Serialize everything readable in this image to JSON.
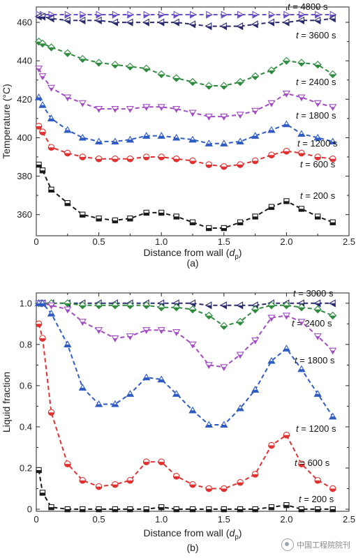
{
  "chart_data": [
    {
      "type": "line",
      "panel_label": "(a)",
      "xlabel": "Distance from wall (d_p)",
      "xlabel_main": "Distance from wall (",
      "xlabel_sym": "d",
      "xlabel_sub": "p",
      "xlabel_end": ")",
      "ylabel": "Temperature (°C)",
      "xlim": [
        0,
        2.5
      ],
      "ylim": [
        349,
        468
      ],
      "xticks": [
        0,
        0.5,
        1.0,
        1.5,
        2.0,
        2.5
      ],
      "xtick_labels": [
        "0",
        "0.5",
        "1.0",
        "1.5",
        "2.0",
        "2.5"
      ],
      "yticks": [
        360,
        380,
        400,
        420,
        440,
        460
      ],
      "ytick_labels": [
        "360",
        "380",
        "400",
        "420",
        "440",
        "460"
      ],
      "grid": false,
      "x": [
        0.02,
        0.05,
        0.12,
        0.25,
        0.37,
        0.5,
        0.63,
        0.75,
        0.88,
        1.0,
        1.12,
        1.25,
        1.38,
        1.5,
        1.63,
        1.75,
        1.88,
        2.0,
        2.12,
        2.25,
        2.37
      ],
      "series": [
        {
          "name": "t = 4800 s",
          "time": "4800",
          "color": "#6a4fc8",
          "marker": "triangle-right",
          "values": [
            464,
            464,
            464,
            464,
            464,
            464,
            464,
            464,
            464,
            464,
            464,
            464,
            464,
            464,
            464,
            464,
            464,
            464,
            464,
            464,
            464
          ]
        },
        {
          "name": "t = 3600 s",
          "time": "3600",
          "color": "#2a2a6e",
          "marker": "triangle-left",
          "values": [
            463,
            463,
            462,
            461,
            461,
            461,
            460,
            460,
            460,
            460,
            460,
            459,
            458,
            458,
            458,
            459,
            460,
            460,
            461,
            461,
            462
          ]
        },
        {
          "name": "t = 2400 s",
          "time": "2400",
          "color": "#2e8b3e",
          "marker": "diamond",
          "values": [
            450,
            449,
            447,
            444,
            441,
            439,
            438,
            437,
            436,
            433,
            431,
            429,
            427,
            427,
            429,
            432,
            435,
            440,
            439,
            438,
            433
          ]
        },
        {
          "name": "t = 1800 s",
          "time": "1800",
          "color": "#a24bc4",
          "marker": "triangle-down",
          "values": [
            436,
            432,
            426,
            421,
            418,
            415,
            415,
            415,
            416,
            416,
            415,
            413,
            411,
            411,
            412,
            414,
            418,
            423,
            421,
            418,
            416
          ]
        },
        {
          "name": "t = 1200 s",
          "time": "1200",
          "color": "#2f5bc4",
          "marker": "triangle-up",
          "values": [
            421,
            417,
            410,
            404,
            400,
            398,
            398,
            399,
            401,
            401,
            400,
            399,
            397,
            397,
            398,
            401,
            404,
            407,
            402,
            400,
            398
          ]
        },
        {
          "name": "t = 600 s",
          "time": "600",
          "color": "#e03030",
          "marker": "circle",
          "values": [
            406,
            403,
            395,
            392,
            390,
            389,
            389,
            389,
            390,
            390,
            389,
            388,
            386,
            385,
            386,
            388,
            391,
            393,
            392,
            390,
            389
          ]
        },
        {
          "name": "t = 200 s",
          "time": "200",
          "color": "#1a1a1a",
          "marker": "square",
          "values": [
            386,
            383,
            373,
            366,
            360,
            358,
            357,
            358,
            361,
            361,
            359,
            356,
            353,
            353,
            356,
            359,
            364,
            367,
            363,
            359,
            356
          ]
        }
      ]
    },
    {
      "type": "line",
      "panel_label": "(b)",
      "xlabel": "Distance from wall (d_p)",
      "xlabel_main": "Distance from wall (",
      "xlabel_sym": "d",
      "xlabel_sub": "p",
      "xlabel_end": ")",
      "ylabel": "Liquid fraction",
      "xlim": [
        0,
        2.5
      ],
      "ylim": [
        -0.01,
        1.05
      ],
      "xticks": [
        0,
        0.5,
        1.0,
        1.5,
        2.0,
        2.5
      ],
      "xtick_labels": [
        "0",
        "0.5",
        "1.0",
        "1.5",
        "2.0",
        "2.5"
      ],
      "yticks": [
        0,
        0.2,
        0.4,
        0.6,
        0.8,
        1.0
      ],
      "ytick_labels": [
        "0",
        "0.2",
        "0.4",
        "0.6",
        "0.8",
        "1.0"
      ],
      "grid": false,
      "x": [
        0.02,
        0.05,
        0.12,
        0.25,
        0.37,
        0.5,
        0.63,
        0.75,
        0.88,
        1.0,
        1.12,
        1.25,
        1.38,
        1.5,
        1.63,
        1.75,
        1.88,
        2.0,
        2.12,
        2.25,
        2.37
      ],
      "series": [
        {
          "name": "t = 3000 s",
          "time": "3000",
          "color": "#2a2a6e",
          "marker": "triangle-left",
          "values": [
            1.0,
            1.0,
            1.0,
            1.0,
            1.0,
            1.0,
            1.0,
            1.0,
            1.0,
            1.0,
            1.0,
            1.0,
            0.99,
            0.99,
            0.99,
            0.99,
            1.0,
            1.0,
            1.0,
            1.0,
            1.0
          ]
        },
        {
          "name": "t = 2400 s",
          "time": "2400",
          "color": "#2e8b3e",
          "marker": "diamond",
          "values": [
            1.0,
            1.0,
            1.0,
            1.0,
            0.99,
            0.99,
            0.99,
            0.99,
            0.99,
            0.98,
            0.98,
            0.97,
            0.94,
            0.89,
            0.91,
            0.97,
            0.99,
            0.99,
            0.98,
            0.97,
            0.94
          ]
        },
        {
          "name": "t = 1800 s",
          "time": "1800",
          "color": "#a24bc4",
          "marker": "triangle-down",
          "values": [
            1.0,
            1.0,
            0.99,
            0.97,
            0.91,
            0.87,
            0.83,
            0.84,
            0.87,
            0.87,
            0.86,
            0.8,
            0.7,
            0.69,
            0.75,
            0.82,
            0.93,
            0.94,
            0.91,
            0.84,
            0.77
          ]
        },
        {
          "name": "t = 1200 s",
          "time": "1200",
          "color": "#2f5bc4",
          "marker": "triangle-up",
          "values": [
            1.0,
            1.0,
            0.95,
            0.8,
            0.59,
            0.51,
            0.51,
            0.56,
            0.64,
            0.63,
            0.56,
            0.48,
            0.41,
            0.41,
            0.49,
            0.58,
            0.72,
            0.78,
            0.68,
            0.56,
            0.45
          ]
        },
        {
          "name": "t = 600 s",
          "time": "600",
          "color": "#e03030",
          "marker": "circle",
          "values": [
            0.9,
            0.83,
            0.47,
            0.22,
            0.14,
            0.11,
            0.12,
            0.14,
            0.23,
            0.23,
            0.16,
            0.12,
            0.1,
            0.1,
            0.13,
            0.17,
            0.31,
            0.36,
            0.22,
            0.14,
            0.1
          ]
        },
        {
          "name": "t = 200 s",
          "time": "200",
          "color": "#1a1a1a",
          "marker": "square",
          "values": [
            0.19,
            0.08,
            0.01,
            0.0,
            0.0,
            0.0,
            0.0,
            0.0,
            0.0,
            0.01,
            0.0,
            0.0,
            0.0,
            0.0,
            0.0,
            0.0,
            0.01,
            0.02,
            0.0,
            0.0,
            0.0
          ]
        }
      ]
    }
  ],
  "watermark": {
    "text": "中国工程院院刊",
    "icon": "wechat-logo-icon"
  }
}
